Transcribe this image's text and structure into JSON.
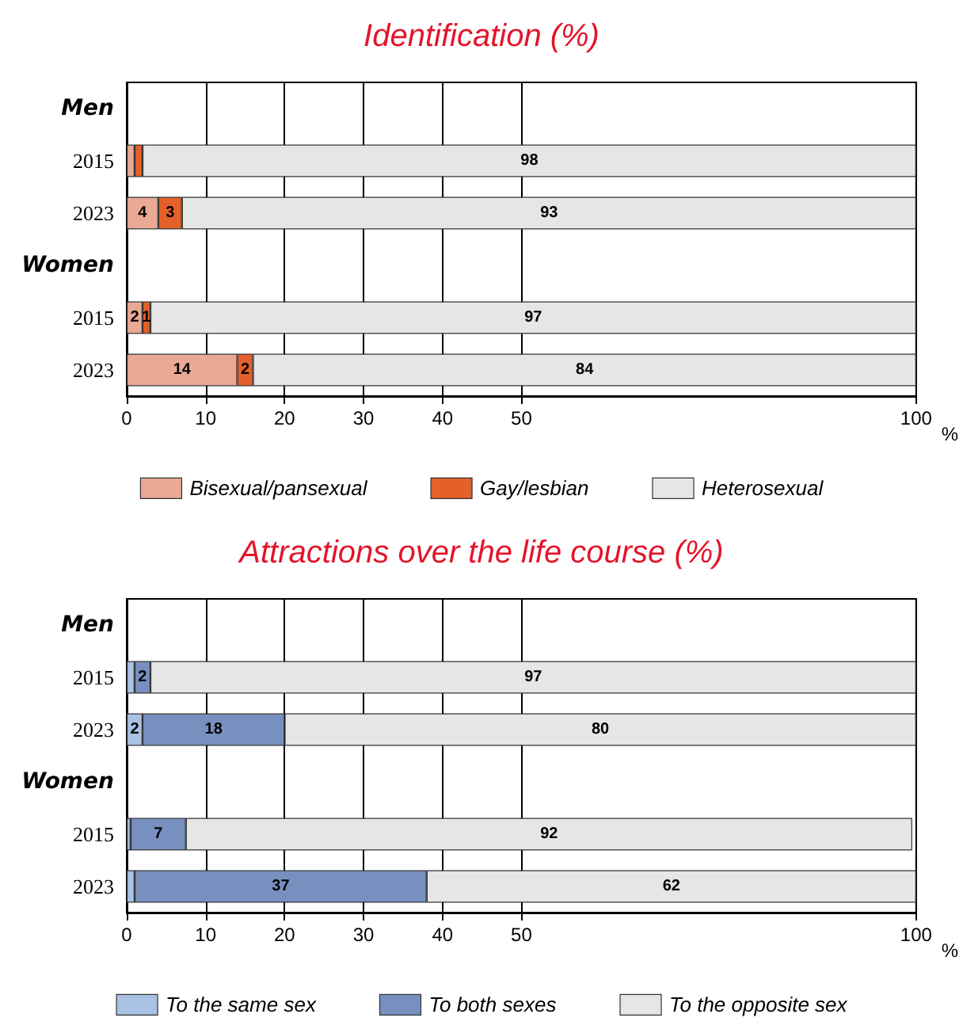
{
  "chart_data": [
    {
      "type": "bar",
      "title": "Identification (%)",
      "orientation": "horizontal",
      "stacked": true,
      "categories": [
        "Men",
        "2015",
        "2023",
        "Women",
        "2015",
        "2023"
      ],
      "xlabel": "%",
      "xlim": [
        0,
        100
      ],
      "xticks": [
        0,
        10,
        20,
        30,
        40,
        50,
        100
      ],
      "grid": "x",
      "legend": "bottom",
      "series": [
        {
          "name": "Bisexual/pansexual",
          "color": "#e9a994",
          "values": [
            null,
            1,
            4,
            null,
            2,
            14
          ],
          "value_labels": [
            null,
            null,
            "4",
            null,
            "2",
            "14"
          ]
        },
        {
          "name": "Gay/lesbian",
          "color": "#e4602a",
          "values": [
            null,
            1,
            3,
            null,
            1,
            2
          ],
          "value_labels": [
            null,
            null,
            "3",
            null,
            "1",
            "2"
          ]
        },
        {
          "name": "Heterosexual",
          "color": "#e6e6e6",
          "values": [
            null,
            98,
            93,
            null,
            97,
            84
          ],
          "value_labels": [
            null,
            "98",
            "93",
            null,
            "97",
            "84"
          ]
        }
      ]
    },
    {
      "type": "bar",
      "title": "Attractions over the life course (%)",
      "orientation": "horizontal",
      "stacked": true,
      "categories": [
        "Men",
        "2015",
        "2023",
        "Women",
        "2015",
        "2023"
      ],
      "xlabel": "%",
      "xlim": [
        0,
        100
      ],
      "xticks": [
        0,
        10,
        20,
        30,
        40,
        50,
        100
      ],
      "grid": "x",
      "legend": "bottom",
      "series": [
        {
          "name": "To the same sex",
          "color": "#a9c1e2",
          "values": [
            null,
            1,
            2,
            null,
            0.5,
            1
          ],
          "value_labels": [
            null,
            null,
            "2",
            null,
            null,
            null
          ]
        },
        {
          "name": "To both sexes",
          "color": "#7890c0",
          "values": [
            null,
            2,
            18,
            null,
            7,
            37
          ],
          "value_labels": [
            null,
            "2",
            "18",
            null,
            "7",
            "37"
          ]
        },
        {
          "name": "To the opposite sex",
          "color": "#e6e6e6",
          "values": [
            null,
            97,
            80,
            null,
            92,
            62
          ],
          "value_labels": [
            null,
            "97",
            "80",
            null,
            "92",
            "62"
          ]
        }
      ]
    }
  ]
}
